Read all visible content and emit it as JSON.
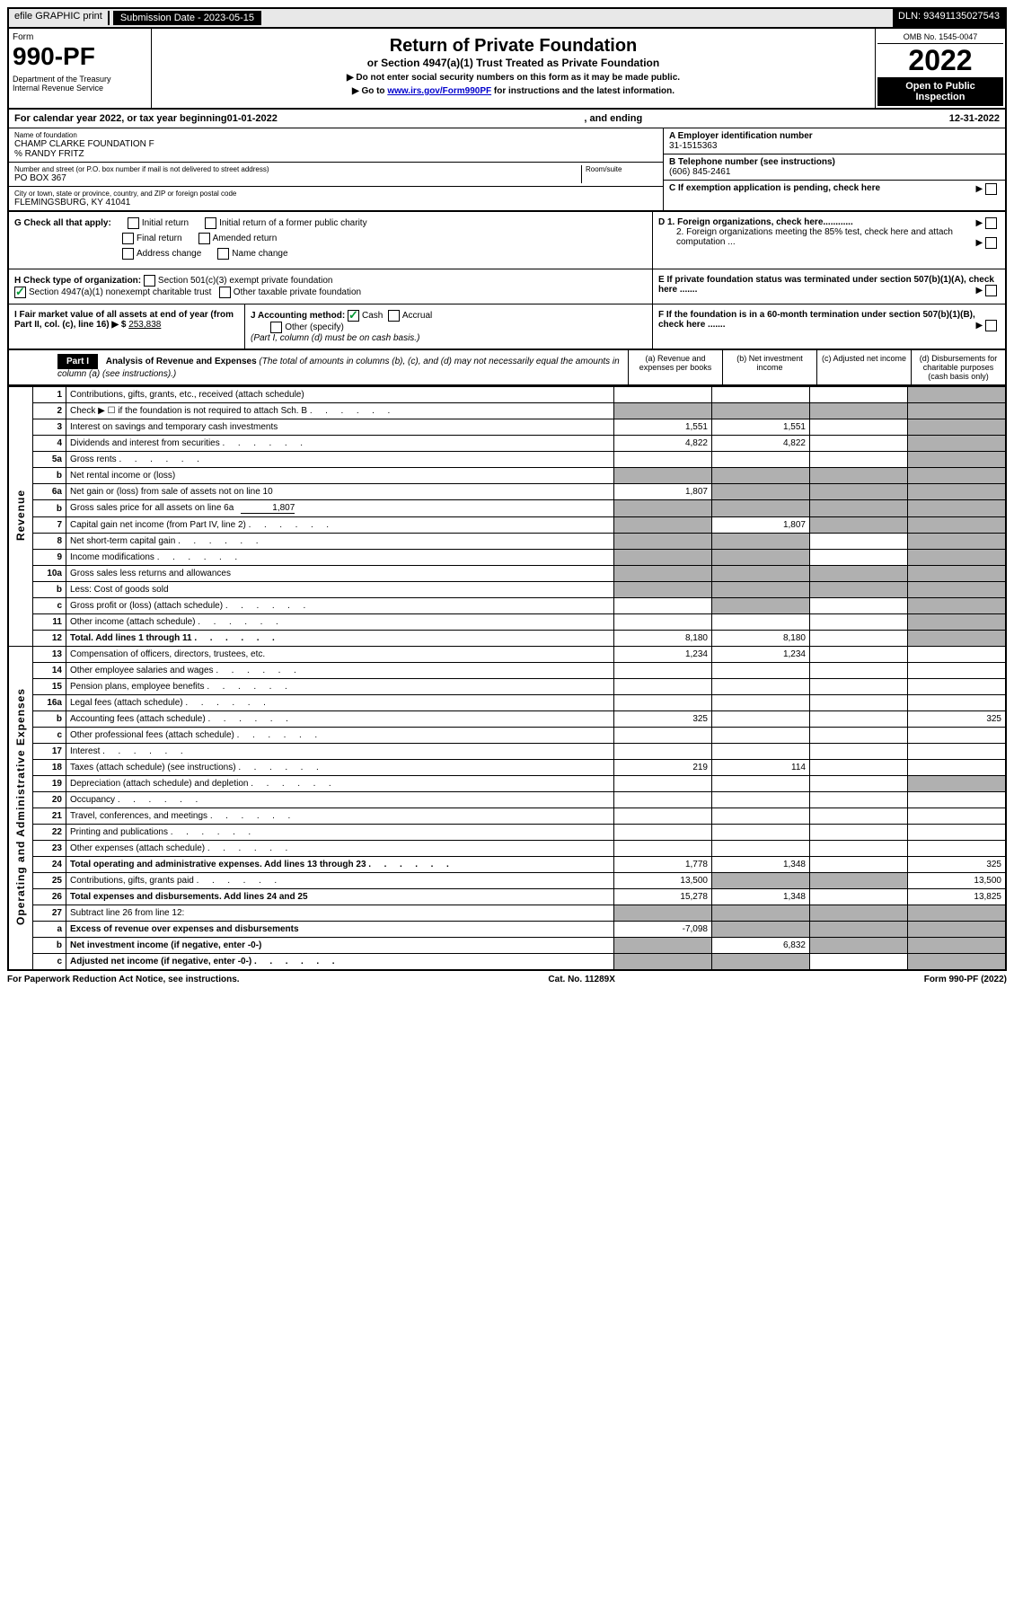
{
  "top": {
    "efile": "efile GRAPHIC print",
    "submission_label": "Submission Date - 2023-05-15",
    "dln": "DLN: 93491135027543"
  },
  "header": {
    "form": "Form",
    "number": "990-PF",
    "dept": "Department of the Treasury\nInternal Revenue Service",
    "title": "Return of Private Foundation",
    "subtitle": "or Section 4947(a)(1) Trust Treated as Private Foundation",
    "note1": "▶ Do not enter social security numbers on this form as it may be made public.",
    "note2_prefix": "▶ Go to ",
    "note2_link": "www.irs.gov/Form990PF",
    "note2_suffix": " for instructions and the latest information.",
    "omb": "OMB No. 1545-0047",
    "year": "2022",
    "open": "Open to Public Inspection"
  },
  "calyear": {
    "prefix": "For calendar year 2022, or tax year beginning ",
    "begin": "01-01-2022",
    "mid": " , and ending ",
    "end": "12-31-2022"
  },
  "entity": {
    "name_label": "Name of foundation",
    "name": "CHAMP CLARKE FOUNDATION F",
    "care_of": "% RANDY FRITZ",
    "addr_label": "Number and street (or P.O. box number if mail is not delivered to street address)",
    "addr": "PO BOX 367",
    "room_label": "Room/suite",
    "city_label": "City or town, state or province, country, and ZIP or foreign postal code",
    "city": "FLEMINGSBURG, KY  41041",
    "ein_label": "A Employer identification number",
    "ein": "31-1515363",
    "phone_label": "B Telephone number (see instructions)",
    "phone": "(606) 845-2461",
    "c_label": "C If exemption application is pending, check here",
    "d1": "D 1. Foreign organizations, check here............",
    "d2": "2. Foreign organizations meeting the 85% test, check here and attach computation ...",
    "e": "E  If private foundation status was terminated under section 507(b)(1)(A), check here .......",
    "f": "F  If the foundation is in a 60-month termination under section 507(b)(1)(B), check here ......."
  },
  "g": {
    "label": "G Check all that apply:",
    "opts": [
      "Initial return",
      "Final return",
      "Address change",
      "Initial return of a former public charity",
      "Amended return",
      "Name change"
    ]
  },
  "h": {
    "label": "H Check type of organization:",
    "opt1": "Section 501(c)(3) exempt private foundation",
    "opt2": "Section 4947(a)(1) nonexempt charitable trust",
    "opt3": "Other taxable private foundation"
  },
  "i": {
    "label": "I Fair market value of all assets at end of year (from Part II, col. (c), line 16) ▶ $",
    "value": "253,838"
  },
  "j": {
    "label": "J Accounting method:",
    "cash": "Cash",
    "accrual": "Accrual",
    "other": "Other (specify)",
    "note": "(Part I, column (d) must be on cash basis.)"
  },
  "part1": {
    "title": "Part I",
    "heading": "Analysis of Revenue and Expenses",
    "subheading": "(The total of amounts in columns (b), (c), and (d) may not necessarily equal the amounts in column (a) (see instructions).)",
    "cols": {
      "a": "(a) Revenue and expenses per books",
      "b": "(b) Net investment income",
      "c": "(c) Adjusted net income",
      "d": "(d) Disbursements for charitable purposes (cash basis only)"
    }
  },
  "sections": {
    "revenue": "Revenue",
    "expenses": "Operating and Administrative Expenses"
  },
  "rows": [
    {
      "n": "1",
      "d": "Contributions, gifts, grants, etc., received (attach schedule)",
      "a": "",
      "b": "",
      "c": "",
      "dd": "",
      "shade_d": true
    },
    {
      "n": "2",
      "d": "Check ▶ ☐ if the foundation is not required to attach Sch. B",
      "a": "",
      "b": "",
      "c": "",
      "dd": "",
      "shade_a": true,
      "shade_b": true,
      "shade_c": true,
      "shade_d": true,
      "dots": true
    },
    {
      "n": "3",
      "d": "Interest on savings and temporary cash investments",
      "a": "1,551",
      "b": "1,551",
      "c": "",
      "dd": "",
      "shade_d": true
    },
    {
      "n": "4",
      "d": "Dividends and interest from securities",
      "a": "4,822",
      "b": "4,822",
      "c": "",
      "dd": "",
      "shade_d": true,
      "dots": true
    },
    {
      "n": "5a",
      "d": "Gross rents",
      "a": "",
      "b": "",
      "c": "",
      "dd": "",
      "shade_d": true,
      "dots": true
    },
    {
      "n": "b",
      "d": "Net rental income or (loss)",
      "a": "",
      "b": "",
      "c": "",
      "dd": "",
      "shade_a": true,
      "shade_b": true,
      "shade_c": true,
      "shade_d": true,
      "inline": true
    },
    {
      "n": "6a",
      "d": "Net gain or (loss) from sale of assets not on line 10",
      "a": "1,807",
      "b": "",
      "c": "",
      "dd": "",
      "shade_b": true,
      "shade_c": true,
      "shade_d": true
    },
    {
      "n": "b",
      "d": "Gross sales price for all assets on line 6a",
      "a": "",
      "b": "",
      "c": "",
      "dd": "",
      "shade_a": true,
      "shade_b": true,
      "shade_c": true,
      "shade_d": true,
      "inline": true,
      "inline_val": "1,807"
    },
    {
      "n": "7",
      "d": "Capital gain net income (from Part IV, line 2)",
      "a": "",
      "b": "1,807",
      "c": "",
      "dd": "",
      "shade_a": true,
      "shade_c": true,
      "shade_d": true,
      "dots": true
    },
    {
      "n": "8",
      "d": "Net short-term capital gain",
      "a": "",
      "b": "",
      "c": "",
      "dd": "",
      "shade_a": true,
      "shade_b": true,
      "shade_d": true,
      "dots": true
    },
    {
      "n": "9",
      "d": "Income modifications",
      "a": "",
      "b": "",
      "c": "",
      "dd": "",
      "shade_a": true,
      "shade_b": true,
      "shade_d": true,
      "dots": true
    },
    {
      "n": "10a",
      "d": "Gross sales less returns and allowances",
      "a": "",
      "b": "",
      "c": "",
      "dd": "",
      "shade_a": true,
      "shade_b": true,
      "shade_c": true,
      "shade_d": true,
      "inline": true
    },
    {
      "n": "b",
      "d": "Less: Cost of goods sold",
      "a": "",
      "b": "",
      "c": "",
      "dd": "",
      "shade_a": true,
      "shade_b": true,
      "shade_c": true,
      "shade_d": true,
      "inline": true,
      "dots": true
    },
    {
      "n": "c",
      "d": "Gross profit or (loss) (attach schedule)",
      "a": "",
      "b": "",
      "c": "",
      "dd": "",
      "shade_b": true,
      "shade_d": true,
      "dots": true
    },
    {
      "n": "11",
      "d": "Other income (attach schedule)",
      "a": "",
      "b": "",
      "c": "",
      "dd": "",
      "shade_d": true,
      "dots": true
    },
    {
      "n": "12",
      "d": "Total. Add lines 1 through 11",
      "a": "8,180",
      "b": "8,180",
      "c": "",
      "dd": "",
      "shade_d": true,
      "bold": true,
      "dots": true
    }
  ],
  "exp_rows": [
    {
      "n": "13",
      "d": "Compensation of officers, directors, trustees, etc.",
      "a": "1,234",
      "b": "1,234",
      "c": "",
      "dd": ""
    },
    {
      "n": "14",
      "d": "Other employee salaries and wages",
      "a": "",
      "b": "",
      "c": "",
      "dd": "",
      "dots": true
    },
    {
      "n": "15",
      "d": "Pension plans, employee benefits",
      "a": "",
      "b": "",
      "c": "",
      "dd": "",
      "dots": true
    },
    {
      "n": "16a",
      "d": "Legal fees (attach schedule)",
      "a": "",
      "b": "",
      "c": "",
      "dd": "",
      "dots": true
    },
    {
      "n": "b",
      "d": "Accounting fees (attach schedule)",
      "a": "325",
      "b": "",
      "c": "",
      "dd": "325",
      "dots": true
    },
    {
      "n": "c",
      "d": "Other professional fees (attach schedule)",
      "a": "",
      "b": "",
      "c": "",
      "dd": "",
      "dots": true
    },
    {
      "n": "17",
      "d": "Interest",
      "a": "",
      "b": "",
      "c": "",
      "dd": "",
      "dots": true
    },
    {
      "n": "18",
      "d": "Taxes (attach schedule) (see instructions)",
      "a": "219",
      "b": "114",
      "c": "",
      "dd": "",
      "dots": true
    },
    {
      "n": "19",
      "d": "Depreciation (attach schedule) and depletion",
      "a": "",
      "b": "",
      "c": "",
      "dd": "",
      "shade_d": true,
      "dots": true
    },
    {
      "n": "20",
      "d": "Occupancy",
      "a": "",
      "b": "",
      "c": "",
      "dd": "",
      "dots": true
    },
    {
      "n": "21",
      "d": "Travel, conferences, and meetings",
      "a": "",
      "b": "",
      "c": "",
      "dd": "",
      "dots": true
    },
    {
      "n": "22",
      "d": "Printing and publications",
      "a": "",
      "b": "",
      "c": "",
      "dd": "",
      "dots": true
    },
    {
      "n": "23",
      "d": "Other expenses (attach schedule)",
      "a": "",
      "b": "",
      "c": "",
      "dd": "",
      "dots": true
    },
    {
      "n": "24",
      "d": "Total operating and administrative expenses. Add lines 13 through 23",
      "a": "1,778",
      "b": "1,348",
      "c": "",
      "dd": "325",
      "bold": true,
      "dots": true
    },
    {
      "n": "25",
      "d": "Contributions, gifts, grants paid",
      "a": "13,500",
      "b": "",
      "c": "",
      "dd": "13,500",
      "shade_b": true,
      "shade_c": true,
      "dots": true
    },
    {
      "n": "26",
      "d": "Total expenses and disbursements. Add lines 24 and 25",
      "a": "15,278",
      "b": "1,348",
      "c": "",
      "dd": "13,825",
      "bold": true
    }
  ],
  "net_rows": [
    {
      "n": "27",
      "d": "Subtract line 26 from line 12:",
      "a": "",
      "b": "",
      "c": "",
      "dd": "",
      "shade_a": true,
      "shade_b": true,
      "shade_c": true,
      "shade_d": true
    },
    {
      "n": "a",
      "d": "Excess of revenue over expenses and disbursements",
      "a": "-7,098",
      "b": "",
      "c": "",
      "dd": "",
      "shade_b": true,
      "shade_c": true,
      "shade_d": true,
      "bold": true
    },
    {
      "n": "b",
      "d": "Net investment income (if negative, enter -0-)",
      "a": "",
      "b": "6,832",
      "c": "",
      "dd": "",
      "shade_a": true,
      "shade_c": true,
      "shade_d": true,
      "bold": true
    },
    {
      "n": "c",
      "d": "Adjusted net income (if negative, enter -0-)",
      "a": "",
      "b": "",
      "c": "",
      "dd": "",
      "shade_a": true,
      "shade_b": true,
      "shade_d": true,
      "bold": true,
      "dots": true
    }
  ],
  "footer": {
    "left": "For Paperwork Reduction Act Notice, see instructions.",
    "mid": "Cat. No. 11289X",
    "right": "Form 990-PF (2022)"
  }
}
